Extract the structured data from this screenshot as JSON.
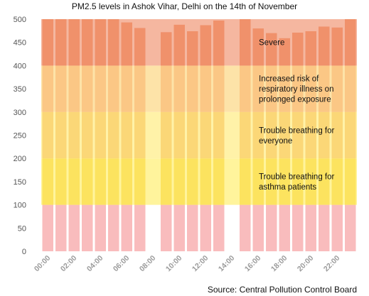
{
  "chart_data": {
    "type": "bar",
    "title": "PM2.5 levels in Ashok Vihar, Delhi on the 14th of November",
    "source": "Source: Central Pollution Control Board",
    "ylim": [
      0,
      500
    ],
    "yticks": [
      "0",
      "50",
      "100",
      "150",
      "200",
      "250",
      "300",
      "350",
      "400",
      "450",
      "500"
    ],
    "categories": [
      "00:00",
      "01:00",
      "02:00",
      "03:00",
      "04:00",
      "05:00",
      "06:00",
      "07:00",
      "08:00",
      "09:00",
      "10:00",
      "11:00",
      "12:00",
      "13:00",
      "14:00",
      "15:00",
      "16:00",
      "17:00",
      "18:00",
      "19:00",
      "20:00",
      "21:00",
      "22:00",
      "23:00"
    ],
    "xtick_labels": [
      "00:00",
      "02:00",
      "04:00",
      "06:00",
      "08:00",
      "10:00",
      "12:00",
      "14:00",
      "16:00",
      "18:00",
      "20:00",
      "22:00"
    ],
    "values": [
      500,
      500,
      500,
      500,
      500,
      500,
      493,
      481,
      null,
      472,
      488,
      474,
      487,
      497,
      null,
      500,
      480,
      470,
      459,
      471,
      474,
      484,
      482,
      500
    ],
    "bands": [
      {
        "from": 0,
        "to": 100,
        "color": "#f9bcbd",
        "label": ""
      },
      {
        "from": 100,
        "to": 200,
        "color": "#fce35f",
        "label": "Trouble breathing for\nasthma patients"
      },
      {
        "from": 200,
        "to": 300,
        "color": "#fbd777",
        "label": "Trouble breathing for\neveryone"
      },
      {
        "from": 300,
        "to": 400,
        "color": "#fbc785",
        "label": "Increased risk of\nrespiratory illness on\nprolonged exposure"
      },
      {
        "from": 400,
        "to": 500,
        "color": "#f0916b",
        "label": "Severe"
      }
    ],
    "band_background": [
      "#ffffff",
      "#fff49c",
      "#fff2a8",
      "#fde3a8",
      "#f5b7a0"
    ]
  }
}
